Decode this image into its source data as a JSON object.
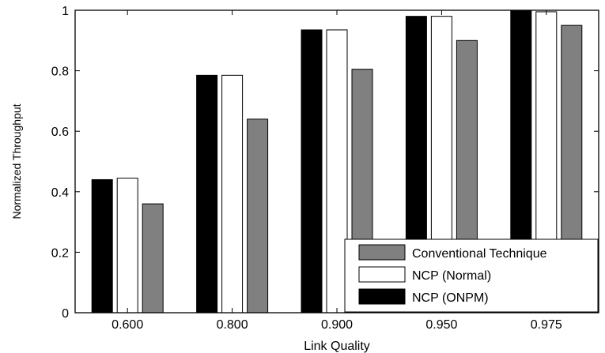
{
  "chart_data": {
    "type": "bar",
    "title": "",
    "xlabel": "Link Quality",
    "ylabel": "Normalized Throughput",
    "categories": [
      "0.600",
      "0.800",
      "0.900",
      "0.950",
      "0.975"
    ],
    "ylim": [
      0,
      1
    ],
    "yticks": [
      "0",
      "0.2",
      "0.4",
      "0.6",
      "0.8",
      "1"
    ],
    "grid": false,
    "legend_position": "bottom-right",
    "series": [
      {
        "name": "NCP (ONPM)",
        "color": "#000000",
        "values": [
          0.44,
          0.785,
          0.935,
          0.98,
          1.0
        ]
      },
      {
        "name": "NCP (Normal)",
        "color": "#ffffff",
        "values": [
          0.445,
          0.785,
          0.935,
          0.98,
          0.995
        ]
      },
      {
        "name": "Conventional Technique",
        "color": "#808080",
        "values": [
          0.36,
          0.64,
          0.805,
          0.9,
          0.95
        ]
      }
    ],
    "legend_order": [
      "Conventional Technique",
      "NCP (Normal)",
      "NCP (ONPM)"
    ]
  }
}
